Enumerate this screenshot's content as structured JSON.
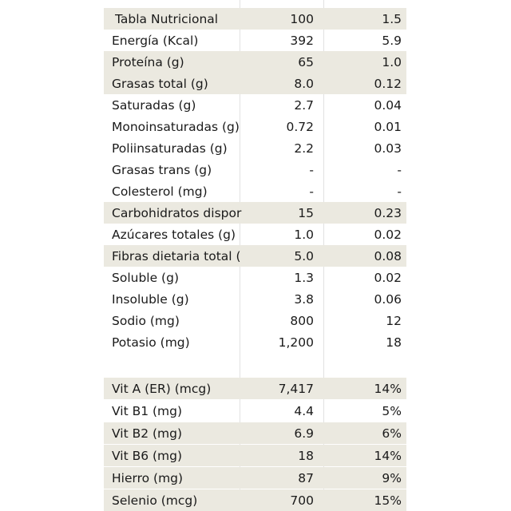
{
  "header": {
    "label": "Tabla Nutricional",
    "col1": "100",
    "col2": "1.5"
  },
  "rows": [
    {
      "label": "Energía (Kcal)",
      "v1": "392",
      "v2": "5.9",
      "shaded": false
    },
    {
      "label": "Proteína (g)",
      "v1": "65",
      "v2": "1.0",
      "shaded": true
    },
    {
      "label": "Grasas total (g)",
      "v1": "8.0",
      "v2": "0.12",
      "shaded": true
    },
    {
      "label": "Saturadas (g)",
      "v1": "2.7",
      "v2": "0.04",
      "shaded": false
    },
    {
      "label": "Monoinsaturadas (g)",
      "v1": "0.72",
      "v2": "0.01",
      "shaded": false
    },
    {
      "label": "Poliinsaturadas (g)",
      "v1": "2.2",
      "v2": "0.03",
      "shaded": false
    },
    {
      "label": "Grasas trans (g)",
      "v1": "-",
      "v2": "-",
      "shaded": false
    },
    {
      "label": "Colesterol (mg)",
      "v1": "-",
      "v2": "-",
      "shaded": false
    },
    {
      "label": "Carbohidratos dispor",
      "v1": "15",
      "v2": "0.23",
      "shaded": true
    },
    {
      "label": "Azúcares totales (g)",
      "v1": "1.0",
      "v2": "0.02",
      "shaded": false
    },
    {
      "label": "Fibras dietaria total (",
      "v1": "5.0",
      "v2": "0.08",
      "shaded": true
    },
    {
      "label": "Soluble  (g)",
      "v1": "1.3",
      "v2": "0.02",
      "shaded": false
    },
    {
      "label": "Insoluble (g)",
      "v1": "3.8",
      "v2": "0.06",
      "shaded": false
    },
    {
      "label": "Sodio (mg)",
      "v1": "800",
      "v2": "12",
      "shaded": false
    },
    {
      "label": "Potasio (mg)",
      "v1": "1,200",
      "v2": "18",
      "shaded": false
    }
  ],
  "vitamins": [
    {
      "label": "Vit A (ER) (mcg)",
      "v1": "7,417",
      "v2": "14%",
      "shaded": true
    },
    {
      "label": "Vit B1 (mg)",
      "v1": "4.4",
      "v2": "5%",
      "shaded": false
    },
    {
      "label": "Vit B2 (mg)",
      "v1": "6.9",
      "v2": "6%",
      "shaded": true
    },
    {
      "label": "Vit B6 (mg)",
      "v1": "18",
      "v2": "14%",
      "shaded": true
    },
    {
      "label": "Hierro (mg)",
      "v1": "87",
      "v2": "9%",
      "shaded": true
    },
    {
      "label": "Selenio (mcg)",
      "v1": "700",
      "v2": "15%",
      "shaded": true
    }
  ],
  "colors": {
    "shade": "#ebe9e0",
    "gridline": "#e2e2e2",
    "text": "#1a1a1a"
  }
}
